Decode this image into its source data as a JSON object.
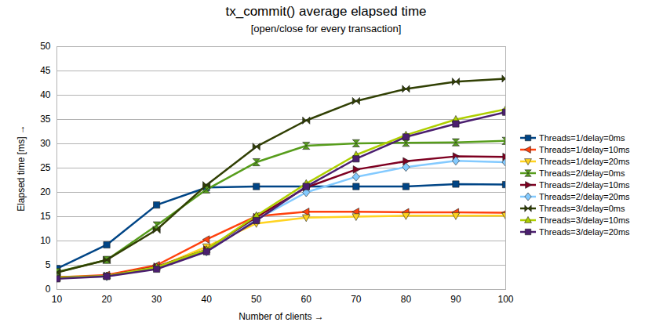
{
  "chart_data": {
    "type": "line",
    "title": "tx_commit() average elapsed time",
    "subtitle": "[open/close for every transaction]",
    "x_label": "Number of clients",
    "y_label": "Elapsed time [ms]",
    "x": [
      10,
      20,
      30,
      40,
      50,
      60,
      70,
      80,
      90,
      100
    ],
    "xlim": [
      10,
      100
    ],
    "xticks": [
      10,
      20,
      30,
      40,
      50,
      60,
      70,
      80,
      90,
      100
    ],
    "ylim": [
      0,
      50
    ],
    "yticks": [
      0,
      5,
      10,
      15,
      20,
      25,
      30,
      35,
      40,
      45,
      50
    ],
    "grid": true,
    "legend": "right",
    "series": [
      {
        "name": "Threads=1/delay=0ms",
        "color": "#004586",
        "marker": "square",
        "values": [
          4.3,
          9.2,
          17.4,
          21.0,
          21.2,
          21.2,
          21.2,
          21.2,
          21.7,
          21.6
        ]
      },
      {
        "name": "Threads=1/delay=10ms",
        "color": "#ff420e",
        "marker": "triangle-left",
        "values": [
          2.5,
          3.0,
          5.0,
          10.3,
          15.1,
          16.0,
          16.0,
          15.9,
          15.9,
          15.8
        ]
      },
      {
        "name": "Threads=1/delay=20ms",
        "color": "#ffd320",
        "marker": "triangle-down",
        "values": [
          2.6,
          2.8,
          4.5,
          8.8,
          13.6,
          14.8,
          15.0,
          15.2,
          15.2,
          15.2
        ]
      },
      {
        "name": "Threads=2/delay=0ms",
        "color": "#579d1c",
        "marker": "hourglass",
        "values": [
          3.6,
          6.1,
          13.2,
          20.6,
          26.2,
          29.6,
          30.1,
          30.2,
          30.3,
          30.6
        ]
      },
      {
        "name": "Threads=2/delay=10ms",
        "color": "#7e0021",
        "marker": "triangle-right",
        "values": [
          2.5,
          2.8,
          4.7,
          8.2,
          14.9,
          21.0,
          24.7,
          26.4,
          27.4,
          27.3
        ]
      },
      {
        "name": "Threads=2/delay=20ms",
        "color": "#83caff",
        "marker": "diamond",
        "values": [
          2.4,
          2.7,
          4.5,
          7.8,
          14.4,
          20.0,
          23.2,
          25.2,
          26.5,
          26.2
        ]
      },
      {
        "name": "Threads=3/delay=0ms",
        "color": "#314004",
        "marker": "bowtie",
        "values": [
          3.5,
          6.1,
          12.3,
          21.5,
          29.4,
          34.8,
          38.8,
          41.3,
          42.8,
          43.4
        ]
      },
      {
        "name": "Threads=3/delay=10ms",
        "color": "#aecf00",
        "marker": "triangle-up",
        "values": [
          2.4,
          2.8,
          4.6,
          8.2,
          15.2,
          21.8,
          27.7,
          31.8,
          35.0,
          37.1
        ]
      },
      {
        "name": "Threads=3/delay=20ms",
        "color": "#4b1f6f",
        "marker": "square",
        "values": [
          2.2,
          2.7,
          4.2,
          7.8,
          14.2,
          21.2,
          26.9,
          31.4,
          34.1,
          36.5
        ]
      }
    ]
  }
}
